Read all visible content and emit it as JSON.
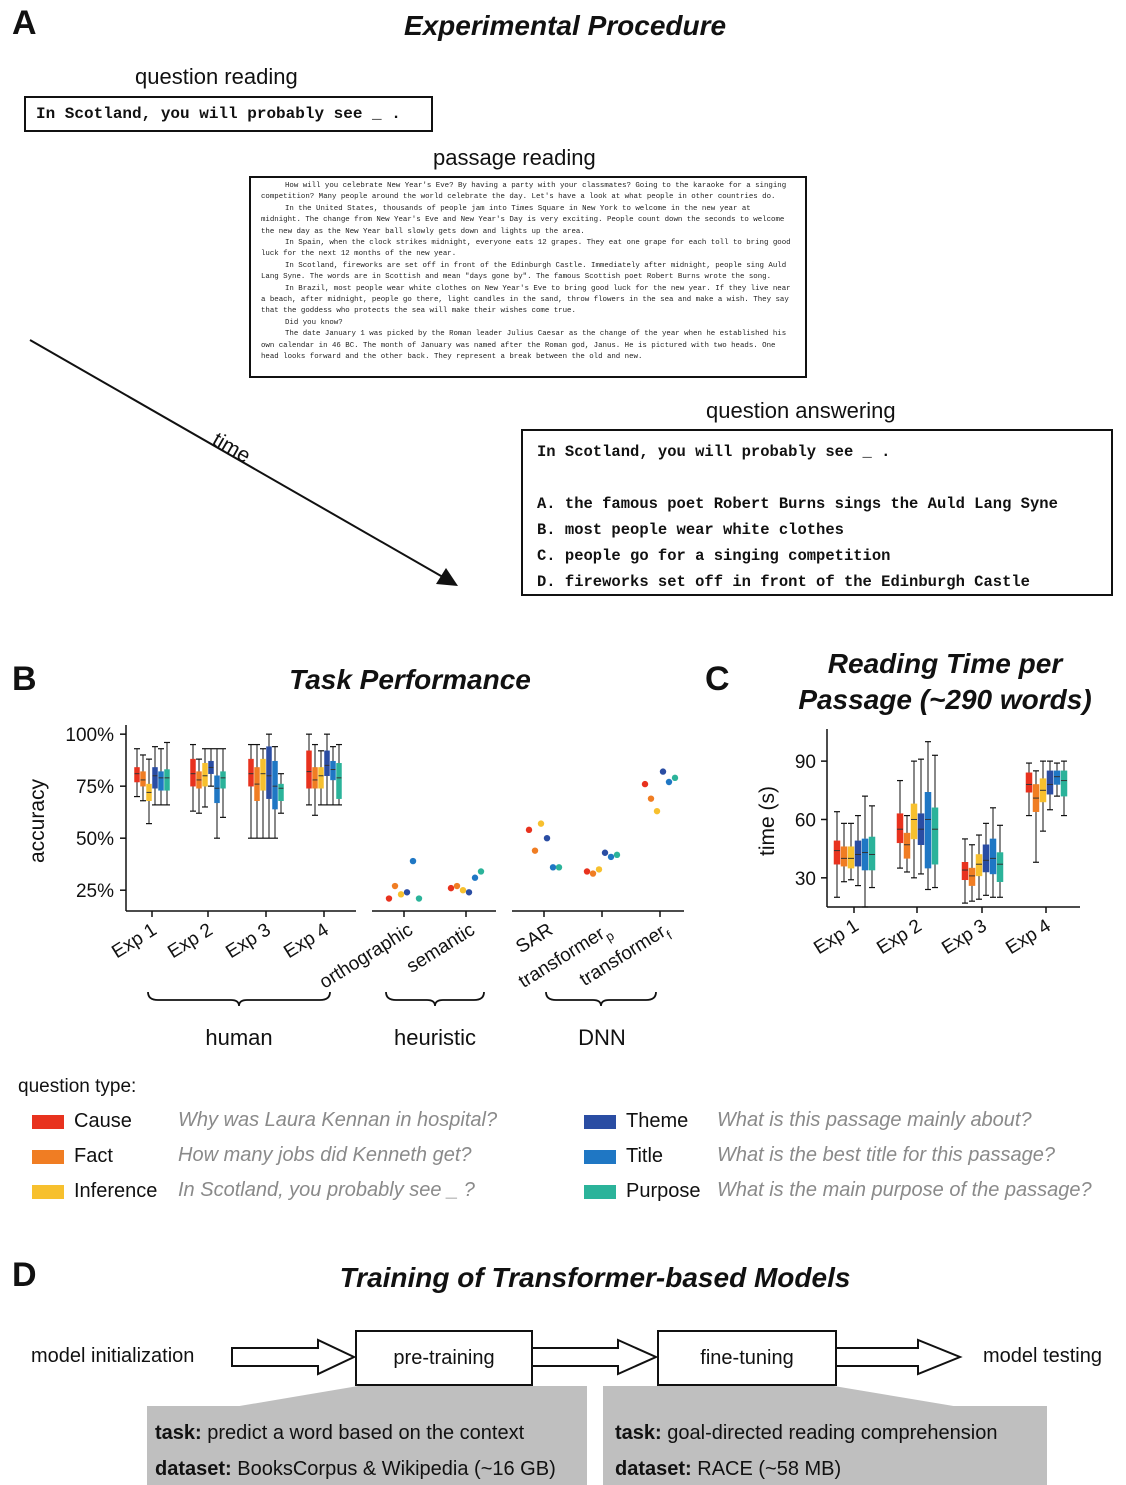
{
  "panelA": {
    "letter": "A",
    "title": "Experimental Procedure",
    "question_reading_label": "question reading",
    "question_text": "In Scotland, you will probably see _ .",
    "passage_reading_label": "passage reading",
    "passage_paragraphs": [
      "How will you celebrate New Year's Eve? By having a party with your classmates? Going to the karaoke for a singing competition? Many people around the world celebrate the day. Let's have a look at what people in other countries do.",
      "In the United States, thousands of people jam into Times Square in New York to welcome in the new year at midnight. The change from New Year's Eve and New Year's Day is very exciting. People count down the seconds to welcome the new day as the New Year ball slowly gets down and lights up the area.",
      "In Spain, when the clock strikes midnight, everyone eats 12 grapes. They eat one grape for each toll to bring good luck for the next 12 months of the new year.",
      "In Scotland, fireworks are set off in front of the Edinburgh Castle. Immediately after midnight, people sing Auld Lang Syne. The words are in Scottish and mean \"days gone by\". The famous Scottish poet Robert Burns wrote the song.",
      "In Brazil, most people wear white clothes on New Year's Eve to bring good luck for the new year. If they live near a beach, after midnight, people go there, light candles in the sand, throw flowers in the sea and make a wish. They say that the goddess who protects the sea will make their wishes come true.",
      "Did you know?",
      "The date January 1 was picked by the Roman leader Julius Caesar as the change of the year when he established his own calendar in 46 BC. The month of January was named after the Roman god, Janus. He is pictured with two heads. One head looks forward and the other back. They represent a break between the old and new."
    ],
    "time_label": "time",
    "question_answering_label": "question answering",
    "options": [
      "A. the famous poet Robert Burns sings the Auld Lang Syne",
      "B. most people wear white clothes",
      "C. people go for a singing competition",
      "D. fireworks set off in front of the Edinburgh Castle"
    ]
  },
  "colors": {
    "Cause": "#e8321e",
    "Fact": "#f07d23",
    "Inference": "#f7c02e",
    "Theme": "#2a4da3",
    "Title": "#1f77c4",
    "Purpose": "#2bb39a"
  },
  "chart_data": [
    {
      "type": "box",
      "panel_letter": "B",
      "title": "Task Performance",
      "ylabel": "accuracy",
      "ylim": [
        0.15,
        1.02
      ],
      "yticks": [
        "25%",
        "50%",
        "75%",
        "100%"
      ],
      "ytick_values": [
        0.25,
        0.5,
        0.75,
        1.0
      ],
      "groups": [
        {
          "name": "human",
          "categories": [
            "Exp 1",
            "Exp 2",
            "Exp 3",
            "Exp 4"
          ],
          "boxes": {
            "Exp 1": [
              {
                "type": "Cause",
                "min": 0.7,
                "q1": 0.77,
                "median": 0.81,
                "q3": 0.84,
                "max": 0.93
              },
              {
                "type": "Fact",
                "min": 0.68,
                "q1": 0.75,
                "median": 0.78,
                "q3": 0.82,
                "max": 0.9
              },
              {
                "type": "Inference",
                "min": 0.57,
                "q1": 0.68,
                "median": 0.72,
                "q3": 0.76,
                "max": 0.88
              },
              {
                "type": "Theme",
                "min": 0.66,
                "q1": 0.74,
                "median": 0.8,
                "q3": 0.84,
                "max": 0.94
              },
              {
                "type": "Title",
                "min": 0.66,
                "q1": 0.73,
                "median": 0.79,
                "q3": 0.82,
                "max": 0.93
              },
              {
                "type": "Purpose",
                "min": 0.66,
                "q1": 0.73,
                "median": 0.79,
                "q3": 0.83,
                "max": 0.96
              }
            ],
            "Exp 2": [
              {
                "type": "Cause",
                "min": 0.63,
                "q1": 0.75,
                "median": 0.81,
                "q3": 0.88,
                "max": 0.95
              },
              {
                "type": "Fact",
                "min": 0.62,
                "q1": 0.74,
                "median": 0.78,
                "q3": 0.82,
                "max": 0.88
              },
              {
                "type": "Inference",
                "min": 0.65,
                "q1": 0.75,
                "median": 0.8,
                "q3": 0.86,
                "max": 0.93
              },
              {
                "type": "Theme",
                "min": 0.75,
                "q1": 0.81,
                "median": 0.84,
                "q3": 0.87,
                "max": 0.93
              },
              {
                "type": "Title",
                "min": 0.5,
                "q1": 0.67,
                "median": 0.74,
                "q3": 0.8,
                "max": 0.93
              },
              {
                "type": "Purpose",
                "min": 0.6,
                "q1": 0.74,
                "median": 0.79,
                "q3": 0.82,
                "max": 0.93
              }
            ],
            "Exp 3": [
              {
                "type": "Cause",
                "min": 0.5,
                "q1": 0.75,
                "median": 0.81,
                "q3": 0.88,
                "max": 0.95
              },
              {
                "type": "Fact",
                "min": 0.5,
                "q1": 0.68,
                "median": 0.76,
                "q3": 0.84,
                "max": 0.95
              },
              {
                "type": "Inference",
                "min": 0.5,
                "q1": 0.73,
                "median": 0.81,
                "q3": 0.88,
                "max": 0.93
              },
              {
                "type": "Theme",
                "min": 0.5,
                "q1": 0.69,
                "median": 0.8,
                "q3": 0.94,
                "max": 1.0
              },
              {
                "type": "Title",
                "min": 0.5,
                "q1": 0.64,
                "median": 0.75,
                "q3": 0.87,
                "max": 0.94
              },
              {
                "type": "Purpose",
                "min": 0.62,
                "q1": 0.68,
                "median": 0.74,
                "q3": 0.76,
                "max": 0.81
              }
            ],
            "Exp 4": [
              {
                "type": "Cause",
                "min": 0.66,
                "q1": 0.74,
                "median": 0.82,
                "q3": 0.92,
                "max": 1.0
              },
              {
                "type": "Fact",
                "min": 0.61,
                "q1": 0.74,
                "median": 0.78,
                "q3": 0.84,
                "max": 0.95
              },
              {
                "type": "Inference",
                "min": 0.66,
                "q1": 0.74,
                "median": 0.8,
                "q3": 0.84,
                "max": 0.92
              },
              {
                "type": "Theme",
                "min": 0.66,
                "q1": 0.8,
                "median": 0.85,
                "q3": 0.92,
                "max": 1.0
              },
              {
                "type": "Title",
                "min": 0.66,
                "q1": 0.78,
                "median": 0.83,
                "q3": 0.87,
                "max": 0.94
              },
              {
                "type": "Purpose",
                "min": 0.66,
                "q1": 0.69,
                "median": 0.79,
                "q3": 0.86,
                "max": 0.95
              }
            ]
          }
        },
        {
          "name": "heuristic",
          "categories": [
            "orthographic",
            "semantic"
          ],
          "points": {
            "orthographic": [
              {
                "type": "Cause",
                "value": 0.21
              },
              {
                "type": "Fact",
                "value": 0.27
              },
              {
                "type": "Inference",
                "value": 0.23
              },
              {
                "type": "Theme",
                "value": 0.24
              },
              {
                "type": "Title",
                "value": 0.39
              },
              {
                "type": "Purpose",
                "value": 0.21
              }
            ],
            "semantic": [
              {
                "type": "Cause",
                "value": 0.26
              },
              {
                "type": "Fact",
                "value": 0.27
              },
              {
                "type": "Inference",
                "value": 0.25
              },
              {
                "type": "Theme",
                "value": 0.24
              },
              {
                "type": "Title",
                "value": 0.31
              },
              {
                "type": "Purpose",
                "value": 0.34
              }
            ]
          }
        },
        {
          "name": "DNN",
          "categories": [
            "SAR",
            "transformer",
            "transformer"
          ],
          "category_subscripts": [
            "",
            "p",
            "f"
          ],
          "points": {
            "SAR": [
              {
                "type": "Cause",
                "value": 0.54
              },
              {
                "type": "Fact",
                "value": 0.44
              },
              {
                "type": "Inference",
                "value": 0.57
              },
              {
                "type": "Theme",
                "value": 0.5
              },
              {
                "type": "Title",
                "value": 0.36
              },
              {
                "type": "Purpose",
                "value": 0.36
              }
            ],
            "transformer_p": [
              {
                "type": "Cause",
                "value": 0.34
              },
              {
                "type": "Fact",
                "value": 0.33
              },
              {
                "type": "Inference",
                "value": 0.35
              },
              {
                "type": "Theme",
                "value": 0.43
              },
              {
                "type": "Title",
                "value": 0.41
              },
              {
                "type": "Purpose",
                "value": 0.42
              }
            ],
            "transformer_f": [
              {
                "type": "Cause",
                "value": 0.76
              },
              {
                "type": "Fact",
                "value": 0.69
              },
              {
                "type": "Inference",
                "value": 0.63
              },
              {
                "type": "Theme",
                "value": 0.82
              },
              {
                "type": "Title",
                "value": 0.77
              },
              {
                "type": "Purpose",
                "value": 0.79
              }
            ]
          }
        }
      ]
    },
    {
      "type": "box",
      "panel_letter": "C",
      "title_lines": [
        "Reading Time per",
        "Passage (~290 words)"
      ],
      "ylabel": "time (s)",
      "ylim": [
        15,
        106
      ],
      "yticks": [
        "30",
        "60",
        "90"
      ],
      "ytick_values": [
        30,
        60,
        90
      ],
      "categories": [
        "Exp 1",
        "Exp 2",
        "Exp 3",
        "Exp 4"
      ],
      "boxes": {
        "Exp 1": [
          {
            "type": "Cause",
            "min": 20,
            "q1": 37,
            "median": 44,
            "q3": 49,
            "max": 64
          },
          {
            "type": "Fact",
            "min": 28,
            "q1": 36,
            "median": 40,
            "q3": 46,
            "max": 58
          },
          {
            "type": "Inference",
            "min": 29,
            "q1": 35,
            "median": 40,
            "q3": 46,
            "max": 58
          },
          {
            "type": "Theme",
            "min": 26,
            "q1": 36,
            "median": 42,
            "q3": 49,
            "max": 62
          },
          {
            "type": "Title",
            "min": 15,
            "q1": 34,
            "median": 43,
            "q3": 50,
            "max": 72
          },
          {
            "type": "Purpose",
            "min": 25,
            "q1": 34,
            "median": 42,
            "q3": 51,
            "max": 67
          }
        ],
        "Exp 2": [
          {
            "type": "Cause",
            "min": 35,
            "q1": 48,
            "median": 55,
            "q3": 63,
            "max": 80
          },
          {
            "type": "Fact",
            "min": 33,
            "q1": 40,
            "median": 47,
            "q3": 53,
            "max": 62
          },
          {
            "type": "Inference",
            "min": 30,
            "q1": 50,
            "median": 60,
            "q3": 68,
            "max": 90
          },
          {
            "type": "Theme",
            "min": 32,
            "q1": 47,
            "median": 55,
            "q3": 63,
            "max": 91
          },
          {
            "type": "Title",
            "min": 24,
            "q1": 35,
            "median": 60,
            "q3": 74,
            "max": 100
          },
          {
            "type": "Purpose",
            "min": 25,
            "q1": 37,
            "median": 55,
            "q3": 66,
            "max": 93
          }
        ],
        "Exp 3": [
          {
            "type": "Cause",
            "min": 17,
            "q1": 29,
            "median": 34,
            "q3": 38,
            "max": 50
          },
          {
            "type": "Fact",
            "min": 18,
            "q1": 26,
            "median": 31,
            "q3": 35,
            "max": 47
          },
          {
            "type": "Inference",
            "min": 19,
            "q1": 31,
            "median": 37,
            "q3": 42,
            "max": 52
          },
          {
            "type": "Theme",
            "min": 21,
            "q1": 33,
            "median": 39,
            "q3": 47,
            "max": 58
          },
          {
            "type": "Title",
            "min": 20,
            "q1": 32,
            "median": 40,
            "q3": 50,
            "max": 66
          },
          {
            "type": "Purpose",
            "min": 20,
            "q1": 28,
            "median": 37,
            "q3": 43,
            "max": 57
          }
        ],
        "Exp 4": [
          {
            "type": "Cause",
            "min": 62,
            "q1": 74,
            "median": 78,
            "q3": 84,
            "max": 89
          },
          {
            "type": "Fact",
            "min": 38,
            "q1": 64,
            "median": 71,
            "q3": 78,
            "max": 85
          },
          {
            "type": "Inference",
            "min": 54,
            "q1": 69,
            "median": 75,
            "q3": 81,
            "max": 90
          },
          {
            "type": "Theme",
            "min": 65,
            "q1": 73,
            "median": 78,
            "q3": 85,
            "max": 90
          },
          {
            "type": "Title",
            "min": 72,
            "q1": 78,
            "median": 82,
            "q3": 85,
            "max": 89
          },
          {
            "type": "Purpose",
            "min": 62,
            "q1": 72,
            "median": 80,
            "q3": 85,
            "max": 90
          }
        ]
      }
    }
  ],
  "legend": {
    "heading": "question type:",
    "items": [
      {
        "type": "Cause",
        "label": "Cause",
        "example": "Why was Laura Kennan in hospital?"
      },
      {
        "type": "Fact",
        "label": "Fact",
        "example": "How many jobs did Kenneth get?"
      },
      {
        "type": "Inference",
        "label": "Inference",
        "example": "In Scotland, you probably see _ ?"
      },
      {
        "type": "Theme",
        "label": "Theme",
        "example": "What is this passage mainly about?"
      },
      {
        "type": "Title",
        "label": "Title",
        "example": "What is the best title for this passage?"
      },
      {
        "type": "Purpose",
        "label": "Purpose",
        "example": "What is the main purpose of the passage?"
      }
    ]
  },
  "panelD": {
    "letter": "D",
    "title": "Training of Transformer-based Models",
    "start_label": "model initialization",
    "box1": "pre-training",
    "box2": "fine-tuning",
    "end_label": "model testing",
    "pre": {
      "task_key": "task:",
      "task": " predict a word based on the context",
      "dataset_key": "dataset:",
      "dataset": " BooksCorpus & Wikipedia (~16 GB)"
    },
    "fine": {
      "task_key": "task:",
      "task": " goal-directed reading comprehension",
      "dataset_key": "dataset:",
      "dataset": " RACE (~58 MB)"
    }
  }
}
